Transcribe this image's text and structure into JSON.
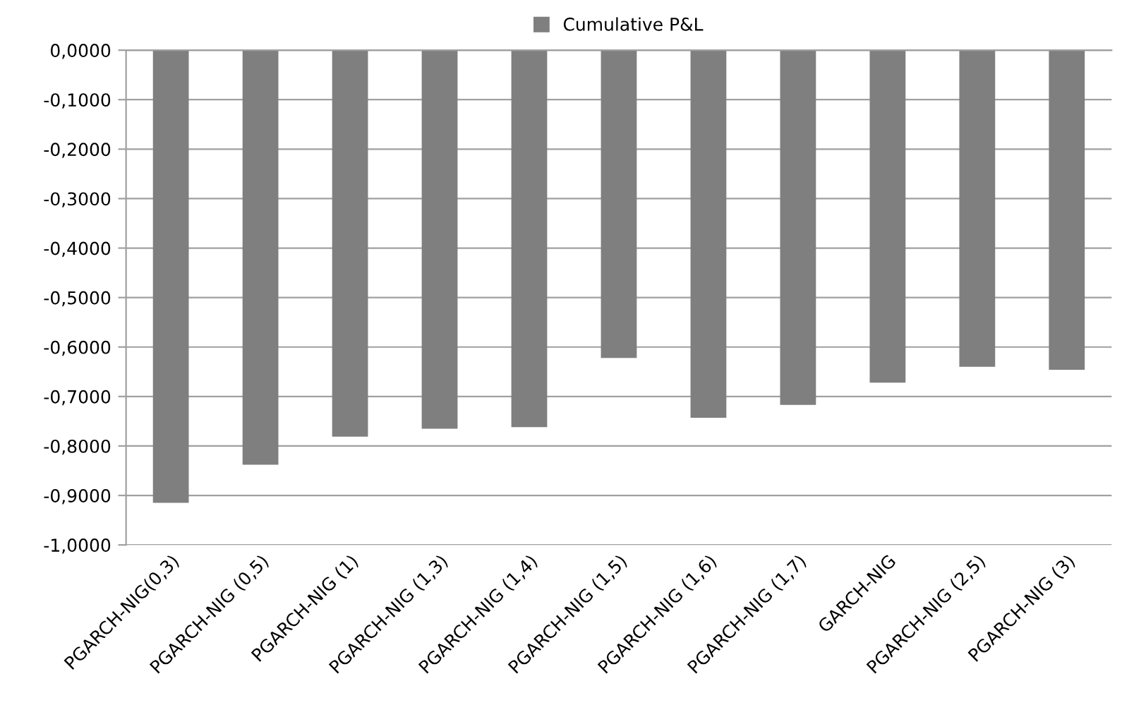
{
  "chart_data": {
    "type": "bar",
    "categories": [
      "PGARCH-NIG(0,3)",
      "PGARCH-NIG (0,5)",
      "PGARCH-NIG (1)",
      "PGARCH-NIG (1,3)",
      "PGARCH-NIG (1,4)",
      "PGARCH-NIG (1,5)",
      "PGARCH-NIG (1,6)",
      "PGARCH-NIG (1,7)",
      "GARCH-NIG",
      "PGARCH-NIG (2,5)",
      "PGARCH-NIG (3)"
    ],
    "series": [
      {
        "name": "Cumulative P&L",
        "color": "#7f7f7f",
        "values": [
          -0.915,
          -0.838,
          -0.781,
          -0.765,
          -0.762,
          -0.622,
          -0.743,
          -0.717,
          -0.672,
          -0.64,
          -0.646
        ]
      }
    ],
    "ylim": [
      -1.0,
      0.0
    ],
    "yticks": [
      {
        "value": 0.0,
        "label": "0,0000"
      },
      {
        "value": -0.1,
        "label": "-0,1000"
      },
      {
        "value": -0.2,
        "label": "-0,2000"
      },
      {
        "value": -0.3,
        "label": "-0,3000"
      },
      {
        "value": -0.4,
        "label": "-0,4000"
      },
      {
        "value": -0.5,
        "label": "-0,5000"
      },
      {
        "value": -0.6,
        "label": "-0,6000"
      },
      {
        "value": -0.7,
        "label": "-0,7000"
      },
      {
        "value": -0.8,
        "label": "-0,8000"
      },
      {
        "value": -0.9,
        "label": "-0,9000"
      },
      {
        "value": -1.0,
        "label": "-1,0000"
      }
    ],
    "grid": "y",
    "legend": "top"
  }
}
